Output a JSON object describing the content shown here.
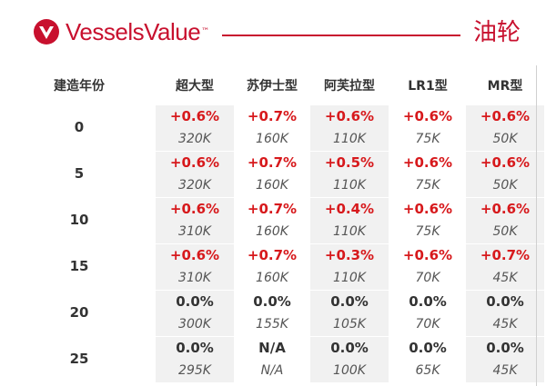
{
  "brand": {
    "name": "VesselsValue",
    "tm": "™",
    "category": "油轮",
    "accent_color": "#c8102e"
  },
  "table": {
    "columns": [
      "建造年份",
      "超大型",
      "苏伊士型",
      "阿芙拉型",
      "LR1型",
      "MR型"
    ],
    "rows": [
      {
        "year": "0",
        "cells": [
          {
            "pct": "+0.6%",
            "val": "320K",
            "dir": "up"
          },
          {
            "pct": "+0.7%",
            "val": "160K",
            "dir": "up"
          },
          {
            "pct": "+0.6%",
            "val": "110K",
            "dir": "up"
          },
          {
            "pct": "+0.6%",
            "val": "75K",
            "dir": "up"
          },
          {
            "pct": "+0.6%",
            "val": "50K",
            "dir": "up"
          }
        ]
      },
      {
        "year": "5",
        "cells": [
          {
            "pct": "+0.6%",
            "val": "320K",
            "dir": "up"
          },
          {
            "pct": "+0.7%",
            "val": "160K",
            "dir": "up"
          },
          {
            "pct": "+0.5%",
            "val": "110K",
            "dir": "up"
          },
          {
            "pct": "+0.6%",
            "val": "75K",
            "dir": "up"
          },
          {
            "pct": "+0.6%",
            "val": "50K",
            "dir": "up"
          }
        ]
      },
      {
        "year": "10",
        "cells": [
          {
            "pct": "+0.6%",
            "val": "310K",
            "dir": "up"
          },
          {
            "pct": "+0.7%",
            "val": "160K",
            "dir": "up"
          },
          {
            "pct": "+0.4%",
            "val": "110K",
            "dir": "up"
          },
          {
            "pct": "+0.6%",
            "val": "75K",
            "dir": "up"
          },
          {
            "pct": "+0.6%",
            "val": "50K",
            "dir": "up"
          }
        ]
      },
      {
        "year": "15",
        "cells": [
          {
            "pct": "+0.6%",
            "val": "310K",
            "dir": "up"
          },
          {
            "pct": "+0.7%",
            "val": "160K",
            "dir": "up"
          },
          {
            "pct": "+0.3%",
            "val": "110K",
            "dir": "up"
          },
          {
            "pct": "+0.6%",
            "val": "70K",
            "dir": "up"
          },
          {
            "pct": "+0.7%",
            "val": "45K",
            "dir": "up"
          }
        ]
      },
      {
        "year": "20",
        "cells": [
          {
            "pct": "0.0%",
            "val": "300K",
            "dir": "flat"
          },
          {
            "pct": "0.0%",
            "val": "155K",
            "dir": "flat"
          },
          {
            "pct": "0.0%",
            "val": "105K",
            "dir": "flat"
          },
          {
            "pct": "0.0%",
            "val": "70K",
            "dir": "flat"
          },
          {
            "pct": "0.0%",
            "val": "45K",
            "dir": "flat"
          }
        ]
      },
      {
        "year": "25",
        "cells": [
          {
            "pct": "0.0%",
            "val": "295K",
            "dir": "flat"
          },
          {
            "pct": "N/A",
            "val": "N/A",
            "dir": "flat"
          },
          {
            "pct": "0.0%",
            "val": "100K",
            "dir": "flat"
          },
          {
            "pct": "0.0%",
            "val": "65K",
            "dir": "flat"
          },
          {
            "pct": "0.0%",
            "val": "45K",
            "dir": "flat"
          }
        ]
      }
    ]
  },
  "colors": {
    "increase": "#d7191c",
    "neutral": "#333333",
    "shade": "#f1f1f1"
  }
}
